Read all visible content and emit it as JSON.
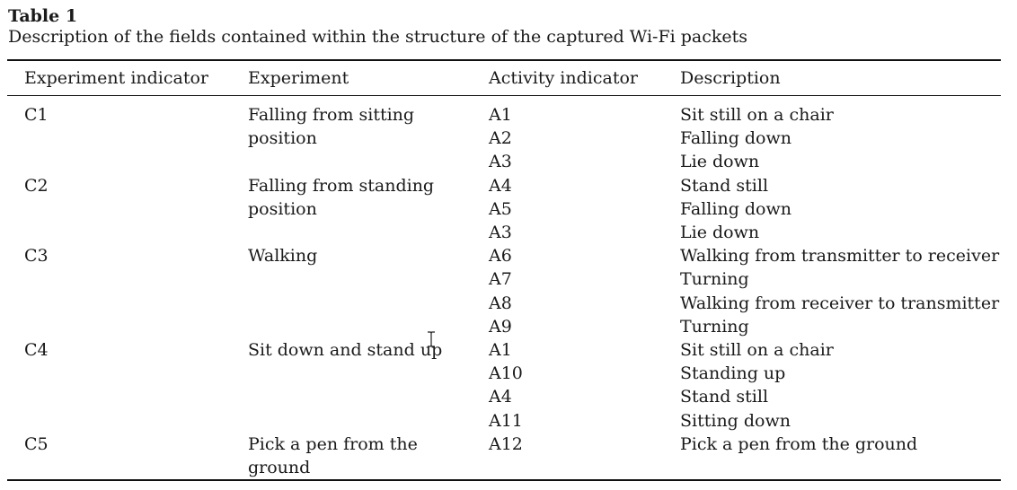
{
  "caption": {
    "label": "Table 1",
    "text": "Description of the fields contained within the structure of the captured Wi-Fi packets"
  },
  "table": {
    "headers": [
      "Experiment indicator",
      "Experiment",
      "Activity indicator",
      "Description"
    ],
    "groups": [
      {
        "indicator": "C1",
        "experiment": "Falling from sitting position",
        "activities": [
          {
            "id": "A1",
            "description": "Sit still on a chair"
          },
          {
            "id": "A2",
            "description": "Falling down"
          },
          {
            "id": "A3",
            "description": "Lie down"
          }
        ]
      },
      {
        "indicator": "C2",
        "experiment": "Falling from standing position",
        "activities": [
          {
            "id": "A4",
            "description": "Stand still"
          },
          {
            "id": "A5",
            "description": "Falling down"
          },
          {
            "id": "A3",
            "description": "Lie down"
          }
        ]
      },
      {
        "indicator": "C3",
        "experiment": "Walking",
        "activities": [
          {
            "id": "A6",
            "description": "Walking from transmitter to receiver"
          },
          {
            "id": "A7",
            "description": "Turning"
          },
          {
            "id": "A8",
            "description": "Walking from receiver to transmitter"
          },
          {
            "id": "A9",
            "description": "Turning"
          }
        ]
      },
      {
        "indicator": "C4",
        "experiment": "Sit down and stand up",
        "activities": [
          {
            "id": "A1",
            "description": "Sit still on a chair"
          },
          {
            "id": "A10",
            "description": "Standing up"
          },
          {
            "id": "A4",
            "description": "Stand still"
          },
          {
            "id": "A11",
            "description": "Sitting down"
          }
        ]
      },
      {
        "indicator": "C5",
        "experiment": "Pick a pen from the ground",
        "activities": [
          {
            "id": "A12",
            "description": "Pick a pen from the ground"
          }
        ]
      }
    ]
  },
  "cursor": {
    "icon": "text-cursor-icon"
  }
}
